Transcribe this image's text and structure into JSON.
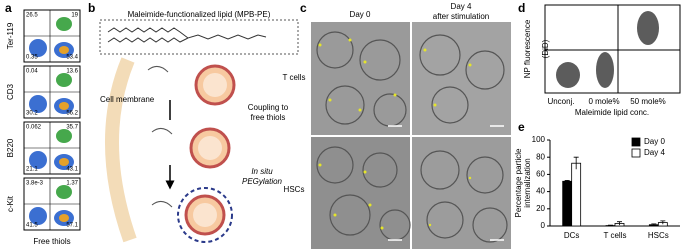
{
  "panels": {
    "a": {
      "letter": "a",
      "x_label": "Free thiols",
      "plots": [
        {
          "marker": "Ter-119",
          "quadrants": [
            "26.5",
            "19",
            "0.35",
            "53.4"
          ]
        },
        {
          "marker": "CD3",
          "quadrants": [
            "0.04",
            "13.6",
            "30.2",
            "56.2"
          ]
        },
        {
          "marker": "B220",
          "quadrants": [
            "0.062",
            "35.7",
            "21.1",
            "43.1"
          ]
        },
        {
          "marker": "c-Kit",
          "quadrants": [
            "3.8e-3",
            "1.37",
            "41.5",
            "57.1"
          ]
        }
      ]
    },
    "b": {
      "letter": "b",
      "box_title": "Maleimide-functionalized lipid (MPB-PE)",
      "membrane": "Cell membrane",
      "step1": [
        "Coupling to",
        "free thiols"
      ],
      "step2": [
        "In situ",
        "PEGylation"
      ]
    },
    "c": {
      "letter": "c",
      "columns": [
        [
          "Day 0"
        ],
        [
          "Day 4",
          "after stimulation"
        ]
      ],
      "rows": [
        "T cells",
        "HSCs"
      ]
    },
    "d": {
      "letter": "d",
      "y_label": [
        "NP fluorescence",
        "(DiD)"
      ],
      "groups": [
        "Unconj.",
        "0 mole%",
        "50 mole%"
      ],
      "x_label": "Maleimide lipid conc."
    }
  },
  "chart_data": {
    "type": "bar",
    "letter": "e",
    "y_label": [
      "Percentage particle",
      "internalization"
    ],
    "categories": [
      "DCs",
      "T cells",
      "HSCs"
    ],
    "series": [
      {
        "name": "Day 0",
        "color": "#000000",
        "values": [
          52,
          0.5,
          1.5
        ],
        "errors": [
          1,
          0.5,
          1
        ]
      },
      {
        "name": "Day 4",
        "color": "#ffffff",
        "values": [
          73,
          3,
          4
        ],
        "errors": [
          7,
          2,
          2
        ]
      }
    ],
    "ylim": [
      0,
      100
    ],
    "yticks": [
      0,
      20,
      40,
      60,
      80,
      100
    ],
    "legend": "top-right"
  }
}
